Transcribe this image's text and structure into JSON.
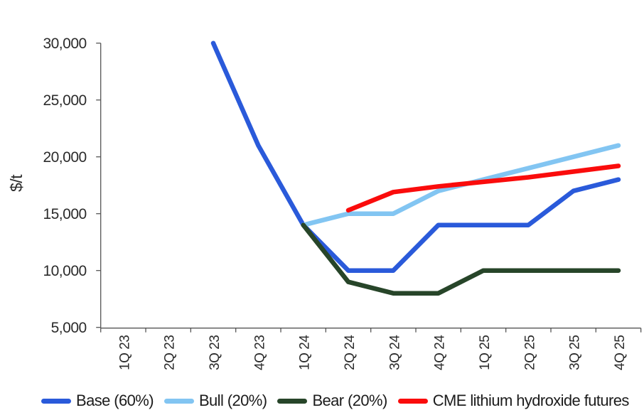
{
  "chart_data": {
    "type": "line",
    "title": "",
    "xlabel": "",
    "ylabel": "$/t",
    "ylim": [
      5000,
      30000
    ],
    "yticks": [
      5000,
      10000,
      15000,
      20000,
      25000,
      30000
    ],
    "ytick_labels": [
      "5,000",
      "10,000",
      "15,000",
      "20,000",
      "25,000",
      "30,000"
    ],
    "categories": [
      "1Q 23",
      "2Q 23",
      "3Q 23",
      "4Q 23",
      "1Q 24",
      "2Q 24",
      "3Q 24",
      "4Q 24",
      "1Q 25",
      "2Q 25",
      "3Q 25",
      "4Q 25"
    ],
    "series": [
      {
        "name": "Base (60%)",
        "color": "#2A5ADA",
        "values": [
          null,
          null,
          30000,
          21000,
          14000,
          10000,
          10000,
          14000,
          14000,
          14000,
          17000,
          18000
        ]
      },
      {
        "name": "Bull (20%)",
        "color": "#82C5F2",
        "values": [
          null,
          null,
          null,
          null,
          14000,
          15000,
          15000,
          17000,
          18000,
          19000,
          20000,
          21000
        ]
      },
      {
        "name": "Bear (20%)",
        "color": "#274529",
        "values": [
          null,
          null,
          null,
          null,
          14000,
          9000,
          8000,
          8000,
          10000,
          10000,
          10000,
          10000
        ]
      },
      {
        "name": "CME lithium hydroxide futures",
        "color": "#FA0C0C",
        "values": [
          null,
          null,
          null,
          null,
          null,
          15300,
          16900,
          17400,
          17800,
          18200,
          18700,
          19200
        ]
      }
    ],
    "legend_position": "bottom",
    "grid": false
  }
}
